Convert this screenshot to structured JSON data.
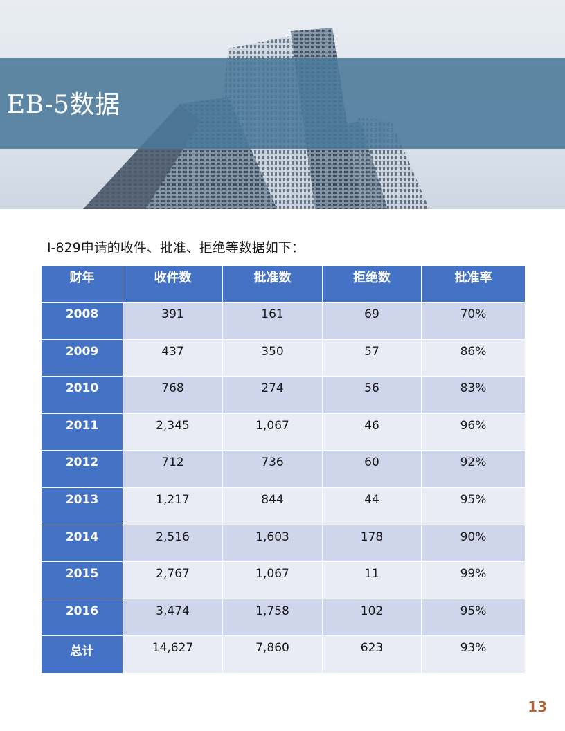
{
  "header": {
    "title": "EB-5数据"
  },
  "intro_text": "I-829申请的收件、批准、拒绝等数据如下：",
  "table": {
    "headers": [
      "财年",
      "收件数",
      "批准数",
      "拒绝数",
      "批准率"
    ],
    "rows": [
      [
        "2008",
        "391",
        "161",
        "69",
        "70%"
      ],
      [
        "2009",
        "437",
        "350",
        "57",
        "86%"
      ],
      [
        "2010",
        "768",
        "274",
        "56",
        "83%"
      ],
      [
        "2011",
        "2,345",
        "1,067",
        "46",
        "96%"
      ],
      [
        "2012",
        "712",
        "736",
        "60",
        "92%"
      ],
      [
        "2013",
        "1,217",
        "844",
        "44",
        "95%"
      ],
      [
        "2014",
        "2,516",
        "1,603",
        "178",
        "90%"
      ],
      [
        "2015",
        "2,767",
        "1,067",
        "11",
        "99%"
      ],
      [
        "2016",
        "3,474",
        "1,758",
        "102",
        "95%"
      ],
      [
        "总计",
        "14,627",
        "7,860",
        "623",
        "93%"
      ]
    ]
  },
  "page_number": "13",
  "colors": {
    "accent_blue": "#4472c4",
    "band": "#4a7999",
    "row_dark": "#cfd5ea",
    "row_light": "#e9ebf5",
    "page_number": "#b0663a"
  }
}
